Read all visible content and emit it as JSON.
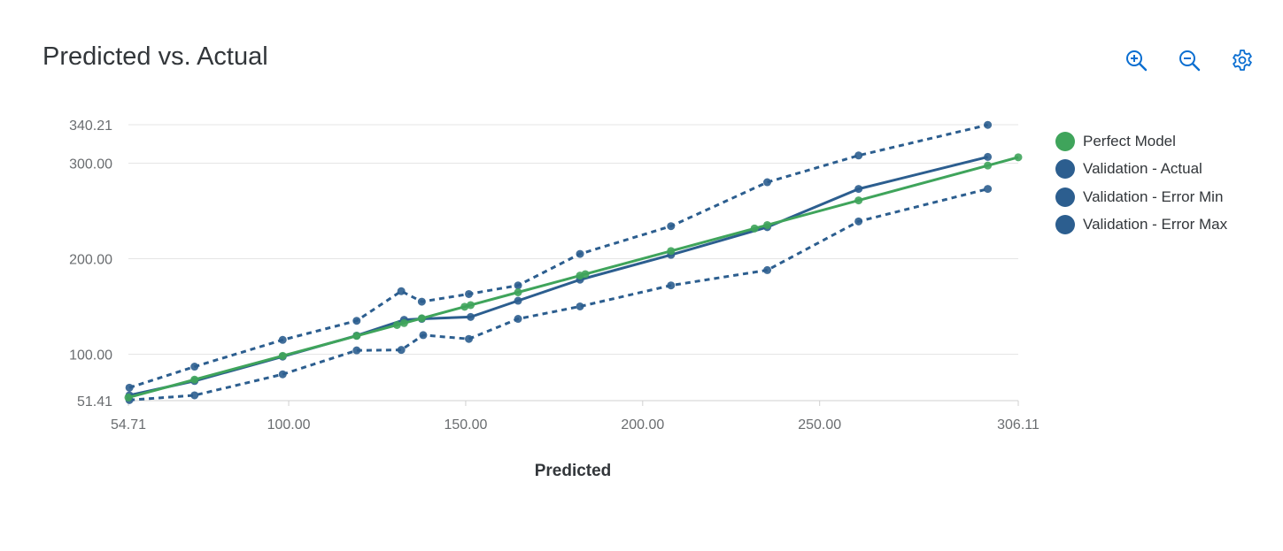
{
  "header": {
    "title": "Predicted vs. Actual"
  },
  "toolbar": {
    "icons": [
      "zoom-in-icon",
      "zoom-out-icon",
      "gear-icon"
    ],
    "color": "#0a6ed1"
  },
  "chart_data": {
    "type": "line",
    "xlabel": "Predicted",
    "ylabel": "",
    "xlim": [
      54.71,
      306.11
    ],
    "ylim": [
      51.41,
      340.21
    ],
    "xticks": [
      "54.71",
      "100.00",
      "150.00",
      "200.00",
      "250.00",
      "306.11"
    ],
    "yticks": [
      "51.41",
      "100.00",
      "200.00",
      "300.00",
      "340.21"
    ],
    "grid": "horizontal",
    "legend_position": "right",
    "series": [
      {
        "name": "Perfect Model",
        "color": "#3fa45b",
        "style": "solid",
        "x": [
          54.71,
          73.4,
          98.3,
          119.2,
          130.6,
          132.6,
          137.6,
          149.7,
          151.4,
          164.8,
          182.3,
          183.8,
          208.0,
          231.6,
          235.2,
          261.0,
          297.5,
          306.11
        ],
        "y": [
          54.71,
          73.4,
          98.3,
          119.2,
          130.6,
          132.6,
          137.6,
          149.7,
          151.4,
          164.8,
          182.3,
          183.8,
          208.0,
          231.6,
          235.2,
          261.0,
          297.5,
          306.11
        ]
      },
      {
        "name": "Validation - Actual",
        "color": "#2c5e8f",
        "style": "solid",
        "x": [
          55.0,
          73.4,
          98.3,
          119.2,
          132.6,
          137.6,
          151.4,
          164.8,
          182.3,
          208.0,
          235.2,
          261.0,
          297.5
        ],
        "y": [
          57.0,
          72.0,
          97.5,
          119.5,
          136.0,
          137.0,
          139.0,
          156.0,
          178.0,
          204.0,
          233.0,
          273.0,
          306.5
        ]
      },
      {
        "name": "Validation - Error Min",
        "color": "#2c5e8f",
        "style": "dashed",
        "x": [
          55.0,
          73.4,
          98.3,
          119.2,
          131.8,
          138.0,
          150.9,
          164.8,
          182.3,
          208.0,
          235.2,
          261.0,
          297.5
        ],
        "y": [
          52.0,
          57.0,
          79.0,
          104.0,
          104.5,
          120.0,
          116.0,
          137.0,
          150.0,
          172.0,
          188.0,
          239.0,
          273.0
        ]
      },
      {
        "name": "Validation - Error Max",
        "color": "#2c5e8f",
        "style": "dashed",
        "x": [
          55.0,
          73.4,
          98.3,
          119.2,
          131.8,
          137.6,
          150.9,
          164.8,
          182.3,
          208.0,
          235.2,
          261.0,
          297.5
        ],
        "y": [
          65.0,
          87.0,
          115.0,
          135.0,
          166.0,
          155.0,
          163.0,
          172.0,
          205.0,
          234.0,
          280.0,
          308.0,
          340.0
        ]
      }
    ]
  }
}
